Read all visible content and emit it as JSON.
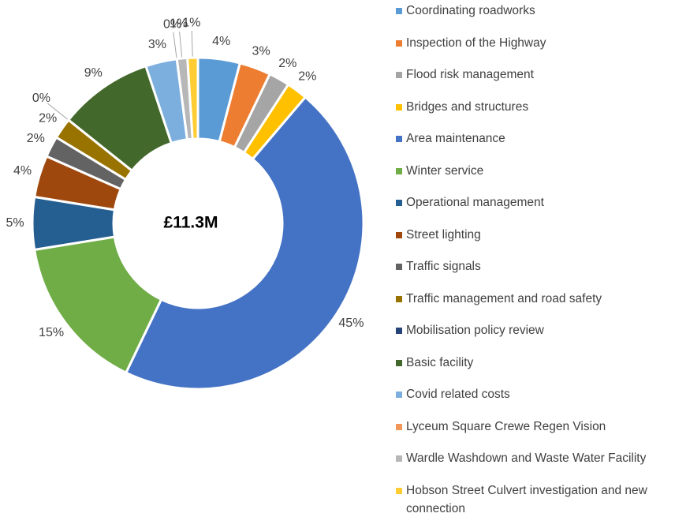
{
  "chart_data": {
    "type": "donut",
    "center_text": "£11.3M",
    "categories": [
      "Coordinating roadworks",
      "Inspection of the Highway",
      "Flood risk management",
      "Bridges and structures",
      "Area maintenance",
      "Winter service",
      "Operational management",
      "Street lighting",
      "Traffic signals",
      "Traffic management and road safety",
      "Mobilisation policy review",
      "Basic facility",
      "Covid related costs",
      "Lyceum Square Crewe Regen Vision",
      "Wardle Washdown and Waste Water Facility",
      "Hobson Street Culvert investigation and new connection"
    ],
    "values": [
      4,
      3,
      2,
      2,
      45,
      15,
      5,
      4,
      2,
      2,
      0,
      9,
      3,
      0,
      1,
      1
    ],
    "value_labels": [
      "4%",
      "3%",
      "2%",
      "2%",
      "45%",
      "15%",
      "5%",
      "4%",
      "2%",
      "2%",
      "0%",
      "9%",
      "3%",
      "0%",
      "1%",
      "1%"
    ],
    "colors": [
      "#5b9bd5",
      "#ed7d31",
      "#a5a5a5",
      "#ffc000",
      "#4472c4",
      "#70ad47",
      "#255e91",
      "#9e480e",
      "#636363",
      "#997300",
      "#264478",
      "#43682b",
      "#7cafdd",
      "#f1975a",
      "#b7b7b7",
      "#ffcd33"
    ],
    "legend": "right"
  }
}
